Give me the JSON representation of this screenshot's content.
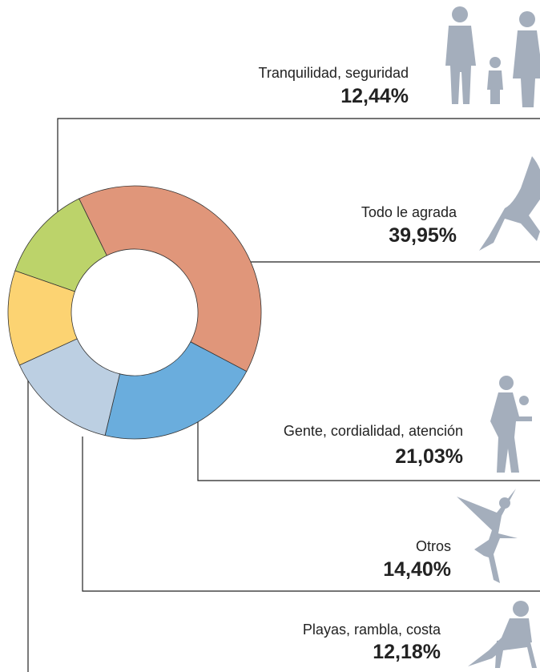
{
  "chart_data": {
    "type": "donut",
    "categories": [
      "Tranquilidad, seguridad",
      "Todo le agrada",
      "Gente, cordialidad, atención",
      "Otros",
      "Playas, rambla, costa"
    ],
    "values": [
      12.44,
      39.95,
      21.03,
      14.4,
      12.18
    ],
    "value_labels": [
      "12,44%",
      "39,95%",
      "21,03%",
      "14,40%",
      "12,18%"
    ],
    "colors": [
      "#bcd36a",
      "#e0967a",
      "#6aaddd",
      "#bccfe2",
      "#fcd372"
    ]
  }
}
